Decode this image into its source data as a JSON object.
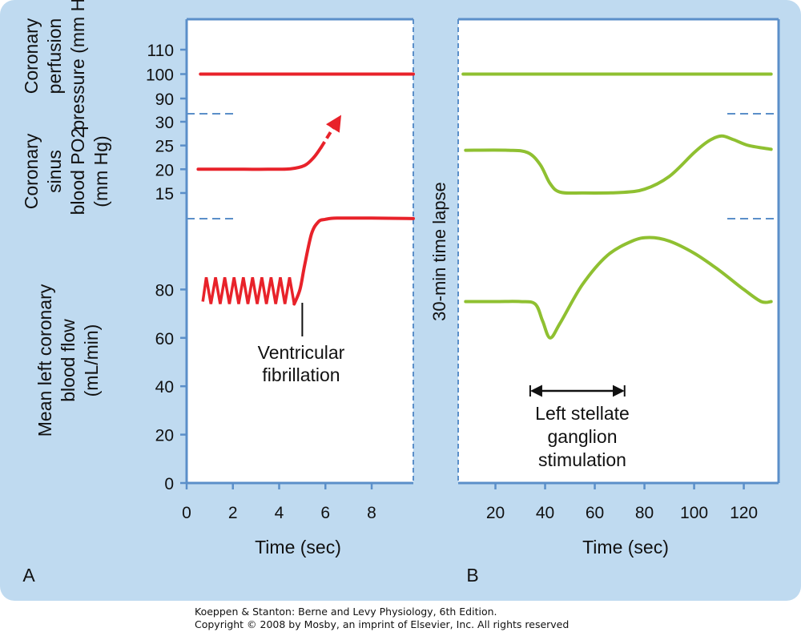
{
  "chart_data": [
    {
      "panel_label": "A",
      "type": "line",
      "xlabel": "Time (sec)",
      "x_ticks": [
        0,
        2,
        4,
        6,
        8
      ],
      "xlim": [
        0,
        9.8
      ],
      "color": "#e8222a",
      "bands": [
        {
          "name": "pressure",
          "ylabel": [
            "Coronary",
            "perfusion",
            "pressure (mm Hg)"
          ],
          "y_ticks": [
            110,
            100,
            90
          ],
          "ylim": [
            85,
            115
          ],
          "series": [
            {
              "x": [
                0.6,
                9.8
              ],
              "y": [
                100,
                100
              ]
            }
          ]
        },
        {
          "name": "po2",
          "ylabel": [
            "Coronary",
            "sinus",
            "blood PO2",
            "(mm Hg)"
          ],
          "y_ticks": [
            30,
            25,
            20,
            15
          ],
          "ylim": [
            12,
            33
          ],
          "series": [
            {
              "x": [
                0.5,
                1.5,
                2.5,
                3.5,
                4.5,
                5.1,
                5.5,
                5.8
              ],
              "y": [
                20,
                20,
                20,
                20,
                20.1,
                20.8,
                22.5,
                24.5
              ]
            },
            {
              "x": [
                5.8,
                6.5
              ],
              "y": [
                24.5,
                30
              ],
              "dashed": true,
              "arrow": true
            }
          ]
        },
        {
          "name": "flow",
          "ylabel": [
            "Mean left coronary",
            "blood flow",
            "(mL/min)"
          ],
          "y_ticks": [
            80,
            60,
            40,
            20,
            0
          ],
          "ylim": [
            0,
            110
          ],
          "series": [
            {
              "x": [
                0.7,
                0.85,
                1.05,
                1.25,
                1.45,
                1.65,
                1.85,
                2.05,
                2.25,
                2.45,
                2.65,
                2.85,
                3.05,
                3.25,
                3.45,
                3.65,
                3.85,
                4.05,
                4.25,
                4.45,
                4.65,
                4.9,
                5.1,
                5.4,
                5.7,
                6.0,
                6.5,
                8.0,
                9.8
              ],
              "y": [
                75,
                85,
                74,
                85,
                74,
                85,
                74,
                85,
                74,
                85,
                74,
                85,
                74,
                85,
                74,
                85,
                74,
                85,
                74,
                85,
                74,
                80,
                90,
                103,
                108,
                109,
                109.5,
                109.5,
                109.3
              ]
            }
          ]
        }
      ],
      "annotation": {
        "text": [
          "Ventricular",
          "fibrillation"
        ],
        "x": 5.0
      }
    },
    {
      "panel_label": "B",
      "type": "line",
      "xlabel": "Time (sec)",
      "x_ticks": [
        20,
        40,
        60,
        80,
        100,
        120
      ],
      "xlim": [
        5,
        134
      ],
      "color": "#8fc031",
      "vertical_label": "30-min time lapse",
      "bands": [
        {
          "name": "pressure",
          "y_ticks": [
            110,
            100,
            90
          ],
          "ylim": [
            85,
            115
          ],
          "series": [
            {
              "x": [
                7,
                131
              ],
              "y": [
                100,
                100
              ]
            }
          ]
        },
        {
          "name": "po2",
          "y_ticks": [
            30,
            25,
            20,
            15
          ],
          "ylim": [
            12,
            33
          ],
          "series": [
            {
              "x": [
                8,
                25,
                33,
                38,
                42,
                46,
                55,
                70,
                80,
                90,
                100,
                106,
                111,
                116,
                122,
                131
              ],
              "y": [
                24,
                24,
                23.5,
                21,
                17,
                15.2,
                15,
                15.1,
                15.8,
                18.5,
                23.5,
                26,
                27,
                26.2,
                25,
                24.2
              ]
            }
          ]
        },
        {
          "name": "flow",
          "y_ticks": [
            80,
            60,
            40,
            20,
            0
          ],
          "ylim": [
            0,
            110
          ],
          "series": [
            {
              "x": [
                8,
                20,
                30,
                36,
                39,
                42,
                46,
                55,
                65,
                75,
                82,
                90,
                100,
                110,
                120,
                127,
                131
              ],
              "y": [
                75,
                75,
                75,
                74,
                67,
                60,
                66,
                82,
                94,
                100,
                101.5,
                100,
                95,
                88,
                80,
                75,
                75
              ]
            }
          ]
        }
      ],
      "annotation": {
        "text": [
          "Left stellate",
          "ganglion",
          "stimulation"
        ],
        "x_range": [
          34,
          72
        ]
      }
    }
  ],
  "credits": [
    "Koeppen & Stanton: Berne and Levy Physiology, 6th Edition.",
    "Copyright © 2008 by Mosby, an imprint of Elsevier, Inc. All rights reserved"
  ],
  "colors": {
    "axis": "#5b8fc9",
    "background": "#bfdaf0"
  }
}
